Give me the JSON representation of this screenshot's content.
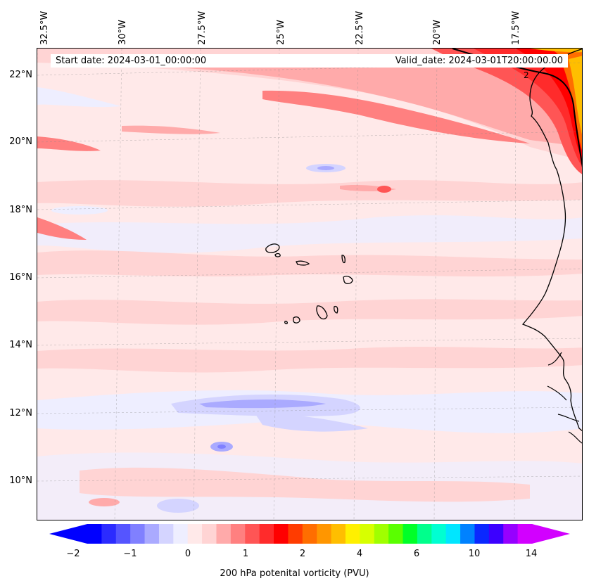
{
  "map": {
    "longitude_labels": [
      "32.5°W",
      "30°W",
      "27.5°W",
      "25°W",
      "22.5°W",
      "20°W",
      "17.5°W"
    ],
    "latitude_labels": [
      "22°N",
      "20°N",
      "18°N",
      "16°N",
      "14°N",
      "12°N",
      "10°N"
    ],
    "start_date": "Start date: 2024-03-01_00:00:00",
    "valid_date": "Valid_date: 2024-03-01T20:00:00.00",
    "contour_label": "2",
    "colors": {
      "ocean_base": "#ffe9e9",
      "coast": "#000000"
    }
  },
  "colorbar": {
    "label": "200 hPa potenital vorticity (PVU)",
    "ticks": [
      "−2",
      "−1",
      "0",
      "1",
      "2",
      "4",
      "6",
      "10",
      "14"
    ],
    "colors": [
      "#0000ff",
      "#2b2bff",
      "#5555ff",
      "#8080ff",
      "#aaaaff",
      "#d4d4ff",
      "#eeeeff",
      "#ffe9e9",
      "#ffd4d4",
      "#ffaaaa",
      "#ff8080",
      "#ff5555",
      "#ff2b2b",
      "#ff0000",
      "#ff3c00",
      "#ff6e00",
      "#ff9600",
      "#ffbe00",
      "#fff000",
      "#d7ff00",
      "#a0ff00",
      "#5aff00",
      "#00ff28",
      "#00ff8c",
      "#00ffd2",
      "#00e6ff",
      "#0082ff",
      "#0a28ff",
      "#3c00ff",
      "#9600ff",
      "#d200ff"
    ]
  }
}
